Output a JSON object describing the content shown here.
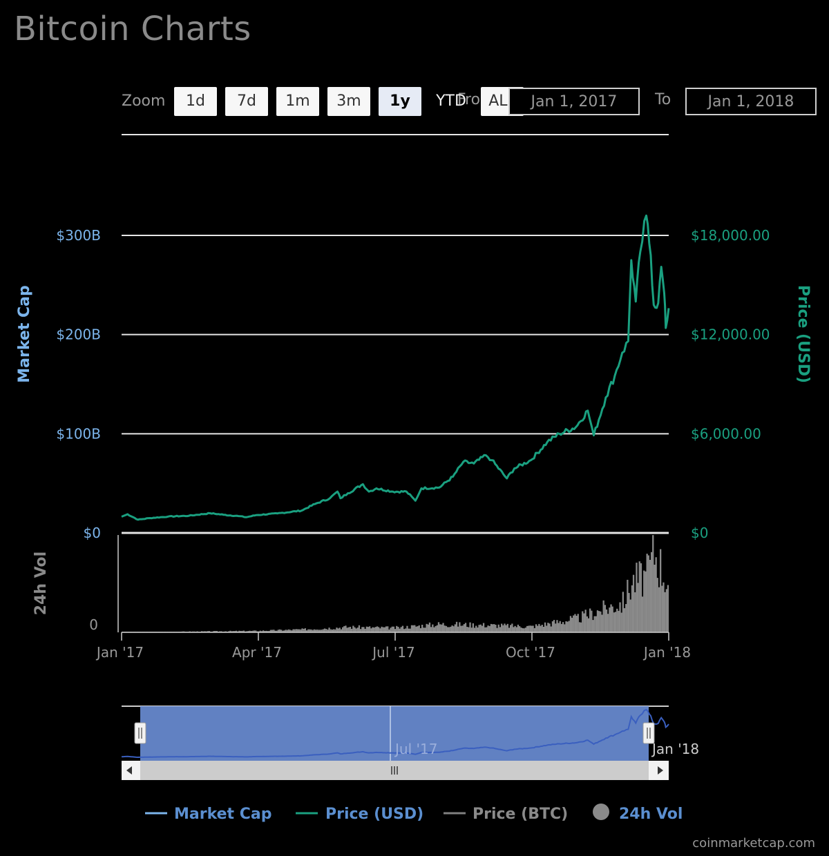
{
  "header": {
    "title": "Bitcoin Charts"
  },
  "zoom": {
    "label": "Zoom",
    "buttons": [
      "1d",
      "7d",
      "1m",
      "3m",
      "1y",
      "YTD",
      "ALL"
    ],
    "active": "1y"
  },
  "range": {
    "from_label": "From",
    "from_value": "Jan 1, 2017",
    "to_label": "To",
    "to_value": "Jan 1, 2018"
  },
  "colors": {
    "market_cap": "#7cb5ec",
    "price_usd": "#1aa080",
    "price_btc": "#808080",
    "volume": "#8a8a8a",
    "navigator_fill": "#6688cc",
    "legend_text": "#5b8fd0"
  },
  "chart_data": {
    "type": "line",
    "x_start": "2017-01-01",
    "x_end": "2018-01-01",
    "x_ticks": [
      "Jan '17",
      "Apr '17",
      "Jul '17",
      "Oct '17",
      "Jan '18"
    ],
    "y_left": {
      "label": "Market Cap",
      "ticks": [
        "$0",
        "$100B",
        "$200B",
        "$300B"
      ],
      "range": [
        0,
        300
      ]
    },
    "y_right": {
      "label": "Price (USD)",
      "ticks": [
        "$0",
        "$6,000.00",
        "$12,000.00",
        "$18,000.00"
      ],
      "range": [
        0,
        18000
      ]
    },
    "volume_axis": {
      "label": "24h Vol",
      "ticks": [
        "0"
      ]
    },
    "series": [
      {
        "name": "Price (USD)",
        "x": [
          "2017-01-01",
          "2017-01-05",
          "2017-01-12",
          "2017-01-20",
          "2017-02-01",
          "2017-02-15",
          "2017-03-01",
          "2017-03-10",
          "2017-03-20",
          "2017-03-25",
          "2017-04-01",
          "2017-04-15",
          "2017-05-01",
          "2017-05-10",
          "2017-05-20",
          "2017-05-25",
          "2017-05-27",
          "2017-06-01",
          "2017-06-11",
          "2017-06-15",
          "2017-06-20",
          "2017-07-01",
          "2017-07-10",
          "2017-07-16",
          "2017-07-20",
          "2017-08-01",
          "2017-08-10",
          "2017-08-17",
          "2017-08-24",
          "2017-09-01",
          "2017-09-05",
          "2017-09-15",
          "2017-09-20",
          "2017-10-01",
          "2017-10-12",
          "2017-10-20",
          "2017-10-31",
          "2017-11-08",
          "2017-11-12",
          "2017-11-20",
          "2017-11-26",
          "2017-12-01",
          "2017-12-05",
          "2017-12-07",
          "2017-12-10",
          "2017-12-13",
          "2017-12-17",
          "2017-12-20",
          "2017-12-22",
          "2017-12-25",
          "2017-12-27",
          "2017-12-29",
          "2017-12-30",
          "2018-01-01"
        ],
        "values": [
          980,
          1130,
          800,
          900,
          990,
          1040,
          1190,
          1100,
          1020,
          950,
          1080,
          1180,
          1350,
          1750,
          2100,
          2500,
          2100,
          2400,
          2950,
          2500,
          2700,
          2500,
          2500,
          1950,
          2700,
          2750,
          3400,
          4300,
          4200,
          4700,
          4400,
          3300,
          3900,
          4400,
          5500,
          6000,
          6400,
          7400,
          5900,
          8200,
          9500,
          10900,
          11600,
          16500,
          14000,
          17000,
          19200,
          16800,
          13800,
          13900,
          16100,
          14500,
          12400,
          13600
        ]
      },
      {
        "name": "Market Cap",
        "x": [
          "2017-01-01",
          "2017-04-01",
          "2017-07-01",
          "2017-10-01",
          "2017-12-17",
          "2018-01-01"
        ],
        "values": [
          15.7,
          17.6,
          41.2,
          72.7,
          321,
          228
        ]
      },
      {
        "name": "24h Vol",
        "x": [
          "2017-01-01",
          "2017-02-01",
          "2017-03-01",
          "2017-04-01",
          "2017-05-01",
          "2017-06-01",
          "2017-07-01",
          "2017-08-01",
          "2017-09-01",
          "2017-10-01",
          "2017-11-01",
          "2017-11-15",
          "2017-12-01",
          "2017-12-07",
          "2017-12-17",
          "2017-12-22",
          "2018-01-01"
        ],
        "values": [
          0.1,
          0.1,
          0.2,
          0.3,
          0.6,
          1.1,
          0.9,
          1.7,
          1.5,
          1.2,
          2.9,
          4.5,
          6.2,
          10.5,
          11.8,
          16.9,
          9.5
        ]
      }
    ],
    "navigator": {
      "x_ticks": [
        "Jul '17",
        "Jan '18"
      ]
    },
    "legend": {
      "placement": "bottom",
      "items": [
        "Market Cap",
        "Price (USD)",
        "Price (BTC)",
        "24h Vol"
      ]
    }
  },
  "credits": "coinmarketcap.com"
}
